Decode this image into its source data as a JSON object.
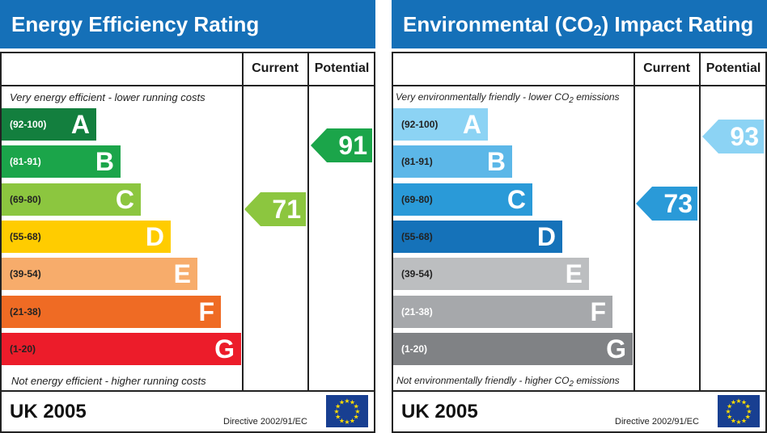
{
  "chart_data": [
    {
      "type": "bar",
      "title": "Energy Efficiency Rating",
      "title_color": "#1570b8",
      "columns": [
        "Current",
        "Potential"
      ],
      "top_note": "Very energy efficient - lower running costs",
      "bottom_note": "Not energy efficient - higher running costs",
      "bands": [
        {
          "letter": "A",
          "range": "(92-100)",
          "min": 92,
          "max": 100,
          "color": "#137f3e",
          "label_color": "#ffffff"
        },
        {
          "letter": "B",
          "range": "(81-91)",
          "min": 81,
          "max": 91,
          "color": "#1ba54a",
          "label_color": "#ffffff"
        },
        {
          "letter": "C",
          "range": "(69-80)",
          "min": 69,
          "max": 80,
          "color": "#8cc63f",
          "label_color": "#222222"
        },
        {
          "letter": "D",
          "range": "(55-68)",
          "min": 55,
          "max": 68,
          "color": "#ffcc00",
          "label_color": "#222222"
        },
        {
          "letter": "E",
          "range": "(39-54)",
          "min": 39,
          "max": 54,
          "color": "#f7ac6b",
          "label_color": "#222222"
        },
        {
          "letter": "F",
          "range": "(21-38)",
          "min": 21,
          "max": 38,
          "color": "#ef6b24",
          "label_color": "#222222"
        },
        {
          "letter": "G",
          "range": "(1-20)",
          "min": 1,
          "max": 20,
          "color": "#ec1c2a",
          "label_color": "#222222"
        }
      ],
      "current": {
        "value": 71,
        "band": "C",
        "color": "#8cc63f"
      },
      "potential": {
        "value": 91,
        "band": "B",
        "color": "#1ba54a"
      },
      "footer": {
        "country": "UK 2005",
        "directive": "Directive 2002/91/EC"
      }
    },
    {
      "type": "bar",
      "title_parts": [
        "Environmental (CO",
        "2",
        ") Impact Rating"
      ],
      "title_color": "#1570b8",
      "columns": [
        "Current",
        "Potential"
      ],
      "top_note_parts": [
        "Very environmentally friendly - lower CO",
        "2",
        " emissions"
      ],
      "bottom_note_parts": [
        "Not environmentally friendly - higher CO",
        "2",
        " emissions"
      ],
      "bands": [
        {
          "letter": "A",
          "range": "(92-100)",
          "min": 92,
          "max": 100,
          "color": "#8cd3f4",
          "label_color": "#222222"
        },
        {
          "letter": "B",
          "range": "(81-91)",
          "min": 81,
          "max": 91,
          "color": "#5cb7e8",
          "label_color": "#222222"
        },
        {
          "letter": "C",
          "range": "(69-80)",
          "min": 69,
          "max": 80,
          "color": "#2a9ad8",
          "label_color": "#222222"
        },
        {
          "letter": "D",
          "range": "(55-68)",
          "min": 55,
          "max": 68,
          "color": "#1572b9",
          "label_color": "#222222"
        },
        {
          "letter": "E",
          "range": "(39-54)",
          "min": 39,
          "max": 54,
          "color": "#bcbec0",
          "label_color": "#222222"
        },
        {
          "letter": "F",
          "range": "(21-38)",
          "min": 21,
          "max": 38,
          "color": "#a6a8ab",
          "label_color": "#ffffff"
        },
        {
          "letter": "G",
          "range": "(1-20)",
          "min": 1,
          "max": 20,
          "color": "#808285",
          "label_color": "#ffffff"
        }
      ],
      "current": {
        "value": 73,
        "band": "C",
        "color": "#2a9ad8"
      },
      "potential": {
        "value": 93,
        "band": "A",
        "color": "#8cd3f4"
      },
      "footer": {
        "country": "UK 2005",
        "directive": "Directive 2002/91/EC"
      }
    }
  ]
}
